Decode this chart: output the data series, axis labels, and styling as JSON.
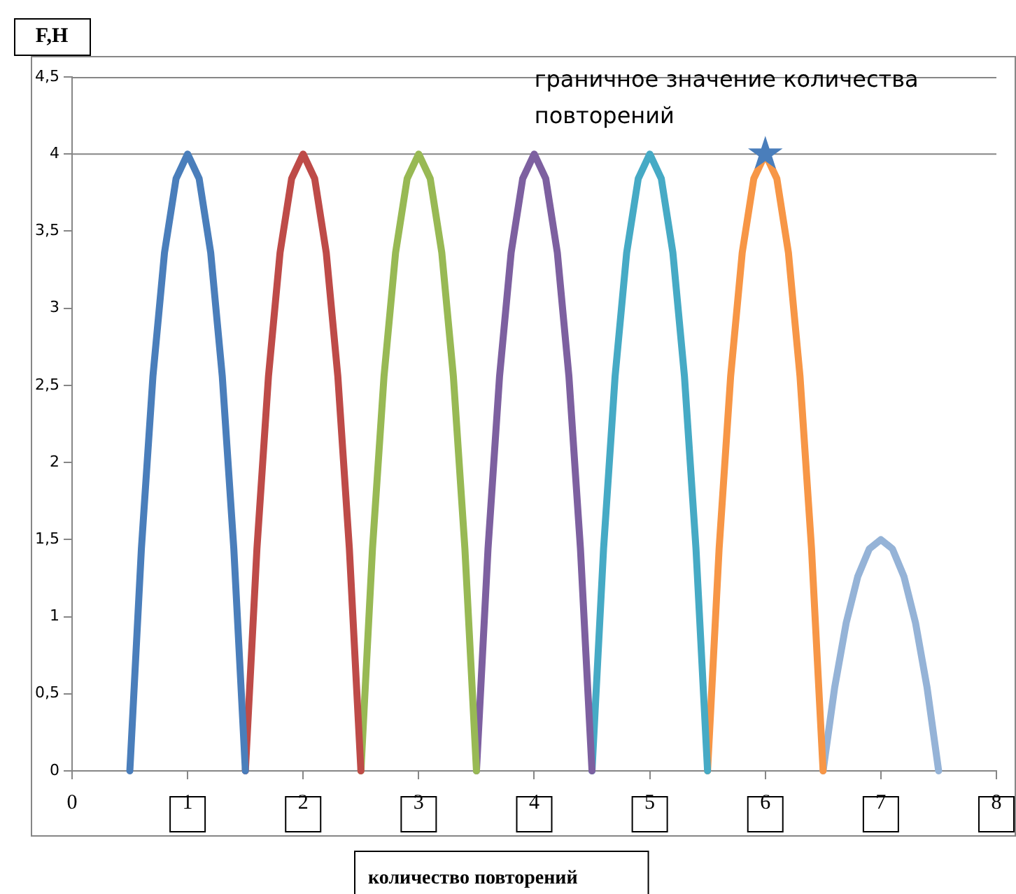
{
  "chart_data": {
    "type": "line",
    "xlabel": "количество повторений",
    "ylabel": "F,H",
    "annotations": [
      {
        "text": "граничное значение количества повторений",
        "x": 6,
        "y": 4
      }
    ],
    "xlim": [
      0,
      8
    ],
    "xticks": [
      0,
      1,
      2,
      3,
      4,
      5,
      6,
      7,
      8
    ],
    "ylim": [
      0,
      4.5
    ],
    "yticks": [
      0,
      {
        "value": 0.5,
        "label": "0,5"
      },
      1,
      {
        "value": 1.5,
        "label": "1,5"
      },
      2,
      {
        "value": 2.5,
        "label": "2,5"
      },
      3,
      {
        "value": 3.5,
        "label": "3,5"
      },
      4,
      {
        "value": 4.5,
        "label": "4,5"
      }
    ],
    "grid": false,
    "legend": false,
    "marker": "none",
    "ref_lines": [
      {
        "axis": "y",
        "value": 4,
        "color": "#868686"
      }
    ],
    "series": [
      {
        "color": "#4a7ebb",
        "x": [
          0.5,
          0.6,
          0.7,
          0.8,
          0.9,
          1,
          1.1,
          1.2,
          1.3,
          1.4,
          1.5
        ],
        "values": [
          0,
          1.44,
          2.56,
          3.36,
          3.84,
          4,
          3.84,
          3.36,
          2.56,
          1.44,
          0
        ]
      },
      {
        "color": "#be4b48",
        "x": [
          1.5,
          1.6,
          1.7,
          1.8,
          1.9,
          2,
          2.1,
          2.2,
          2.3,
          2.4,
          2.5
        ],
        "values": [
          0,
          1.44,
          2.56,
          3.36,
          3.84,
          4,
          3.84,
          3.36,
          2.56,
          1.44,
          0
        ]
      },
      {
        "color": "#98b954",
        "x": [
          2.5,
          2.6,
          2.7,
          2.8,
          2.9,
          3,
          3.1,
          3.2,
          3.3,
          3.4,
          3.5
        ],
        "values": [
          0,
          1.44,
          2.56,
          3.36,
          3.84,
          4,
          3.84,
          3.36,
          2.56,
          1.44,
          0
        ]
      },
      {
        "color": "#7d60a0",
        "x": [
          3.5,
          3.6,
          3.7,
          3.8,
          3.9,
          4,
          4.1,
          4.2,
          4.3,
          4.4,
          4.5
        ],
        "values": [
          0,
          1.44,
          2.56,
          3.36,
          3.84,
          4,
          3.84,
          3.36,
          2.56,
          1.44,
          0
        ]
      },
      {
        "color": "#46aac5",
        "x": [
          4.5,
          4.6,
          4.7,
          4.8,
          4.9,
          5,
          5.1,
          5.2,
          5.3,
          5.4,
          5.5
        ],
        "values": [
          0,
          1.44,
          2.56,
          3.36,
          3.84,
          4,
          3.84,
          3.36,
          2.56,
          1.44,
          0
        ]
      },
      {
        "color": "#f79646",
        "x": [
          5.5,
          5.6,
          5.7,
          5.8,
          5.9,
          6,
          6.1,
          6.2,
          6.3,
          6.4,
          6.5
        ],
        "values": [
          0,
          1.44,
          2.56,
          3.36,
          3.84,
          4,
          3.84,
          3.36,
          2.56,
          1.44,
          0
        ]
      },
      {
        "color": "#95b3d7",
        "x": [
          6.5,
          6.6,
          6.7,
          6.8,
          6.9,
          7,
          7.1,
          7.2,
          7.3,
          7.4,
          7.5
        ],
        "values": [
          0,
          0.54,
          0.96,
          1.26,
          1.44,
          1.5,
          1.44,
          1.26,
          0.96,
          0.54,
          0
        ]
      },
      {
        "type": "scatter",
        "marker": "star",
        "color": "#4a7ebb",
        "x": [
          6
        ],
        "values": [
          4
        ]
      }
    ]
  }
}
